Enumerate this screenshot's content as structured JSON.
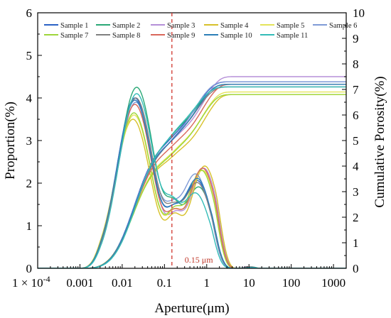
{
  "chart_data": {
    "type": "line",
    "title": "",
    "xlabel": "Aperture(μm)",
    "ylabel_left": "Proportion(%)",
    "ylabel_right": "Cumulative Porosity(%)",
    "x_scale": "log",
    "xlim": [
      0.0001,
      2000
    ],
    "ylim_left": [
      0,
      6
    ],
    "ylim_right": [
      0,
      10
    ],
    "x_ticks": [
      {
        "value": 0.0001,
        "label": "1 × 10-4"
      },
      {
        "value": 0.001,
        "label": "0.001"
      },
      {
        "value": 0.01,
        "label": "0.01"
      },
      {
        "value": 0.1,
        "label": "0.1"
      },
      {
        "value": 1,
        "label": "1"
      },
      {
        "value": 10,
        "label": "10"
      },
      {
        "value": 100,
        "label": "100"
      },
      {
        "value": 1000,
        "label": "1000"
      }
    ],
    "y_ticks_left": [
      "0",
      "1",
      "2",
      "3",
      "4",
      "5",
      "6"
    ],
    "y_ticks_right": [
      "0",
      "1",
      "2",
      "3",
      "4",
      "5",
      "6",
      "7",
      "8",
      "9",
      "10"
    ],
    "annotation": {
      "x": 0.15,
      "label": "0.15 μm",
      "color": "#d0342c"
    },
    "legend_position": "top",
    "series": [
      {
        "name": "Sample 1",
        "color": "#2b62c5",
        "peak1_x": 0.02,
        "peak1": 4.0,
        "valley_x": 0.16,
        "valley": 1.5,
        "peak2_x": 0.6,
        "peak2": 2.05,
        "end_x": 4.2,
        "cumulative_final": 7.3
      },
      {
        "name": "Sample 2",
        "color": "#2aa876",
        "peak1_x": 0.022,
        "peak1": 4.25,
        "valley_x": 0.16,
        "valley": 1.65,
        "peak2_x": 0.65,
        "peak2": 1.9,
        "end_x": 4.0,
        "cumulative_final": 7.2
      },
      {
        "name": "Sample 3",
        "color": "#b58fd8",
        "peak1_x": 0.02,
        "peak1": 3.95,
        "valley_x": 0.18,
        "valley": 1.35,
        "peak2_x": 0.85,
        "peak2": 2.35,
        "end_x": 4.8,
        "cumulative_final": 7.5
      },
      {
        "name": "Sample 4",
        "color": "#d7c12a",
        "peak1_x": 0.018,
        "peak1": 3.5,
        "valley_x": 0.17,
        "valley": 1.3,
        "peak2_x": 0.9,
        "peak2": 2.4,
        "end_x": 5.0,
        "cumulative_final": 6.8
      },
      {
        "name": "Sample 5",
        "color": "#e4e45a",
        "peak1_x": 0.019,
        "peak1": 3.6,
        "valley_x": 0.17,
        "valley": 1.4,
        "peak2_x": 0.8,
        "peak2": 2.3,
        "end_x": 4.6,
        "cumulative_final": 6.9
      },
      {
        "name": "Sample 6",
        "color": "#7f9ad6",
        "peak1_x": 0.021,
        "peak1": 3.9,
        "valley_x": 0.15,
        "valley": 1.6,
        "peak2_x": 0.55,
        "peak2": 2.2,
        "end_x": 4.0,
        "cumulative_final": 7.3
      },
      {
        "name": "Sample 7",
        "color": "#9ed63a",
        "peak1_x": 0.019,
        "peak1": 3.65,
        "valley_x": 0.17,
        "valley": 1.45,
        "peak2_x": 0.75,
        "peak2": 2.3,
        "end_x": 4.5,
        "cumulative_final": 6.8
      },
      {
        "name": "Sample 8",
        "color": "#808080",
        "peak1_x": 0.021,
        "peak1": 4.0,
        "valley_x": 0.16,
        "valley": 1.55,
        "peak2_x": 0.6,
        "peak2": 2.0,
        "end_x": 4.1,
        "cumulative_final": 7.1
      },
      {
        "name": "Sample 9",
        "color": "#d9675a",
        "peak1_x": 0.02,
        "peak1": 3.85,
        "valley_x": 0.17,
        "valley": 1.4,
        "peak2_x": 0.8,
        "peak2": 2.35,
        "end_x": 4.7,
        "cumulative_final": 7.2
      },
      {
        "name": "Sample 10",
        "color": "#2c7fb8",
        "peak1_x": 0.02,
        "peak1": 3.95,
        "valley_x": 0.16,
        "valley": 1.5,
        "peak2_x": 0.6,
        "peak2": 2.1,
        "end_x": 4.2,
        "cumulative_final": 7.2
      },
      {
        "name": "Sample 11",
        "color": "#33bcb8",
        "peak1_x": 0.022,
        "peak1": 4.1,
        "valley_x": 0.15,
        "valley": 1.7,
        "peak2_x": 0.55,
        "peak2": 1.75,
        "end_x": 3.8,
        "cumulative_final": 7.1
      }
    ]
  }
}
